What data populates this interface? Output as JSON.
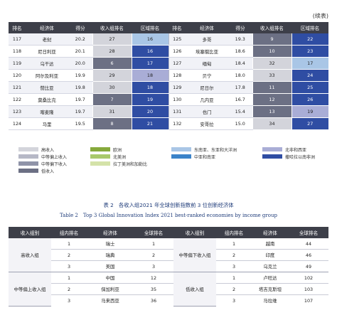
{
  "continued_label": "(续表)",
  "table1": {
    "headers": [
      "排名",
      "经济体",
      "得分",
      "收入组排名",
      "区域排名",
      "排名",
      "经济体",
      "得分",
      "收入组排名",
      "区域排名"
    ],
    "rows": [
      {
        "left": {
          "rank": "117",
          "economy": "老挝",
          "score": "20.2",
          "income_rank": "27",
          "region_rank": "16"
        },
        "right": {
          "rank": "125",
          "economy": "多哥",
          "score": "19.3",
          "income_rank": "9",
          "region_rank": "22"
        }
      },
      {
        "left": {
          "rank": "118",
          "economy": "尼日利亚",
          "score": "20.1",
          "income_rank": "28",
          "region_rank": "16"
        },
        "right": {
          "rank": "126",
          "economy": "埃塞俄比亚",
          "score": "18.6",
          "income_rank": "10",
          "region_rank": "23"
        }
      },
      {
        "left": {
          "rank": "119",
          "economy": "乌干达",
          "score": "20.0",
          "income_rank": "6",
          "region_rank": "17"
        },
        "right": {
          "rank": "127",
          "economy": "缅甸",
          "score": "18.4",
          "income_rank": "32",
          "region_rank": "17"
        }
      },
      {
        "left": {
          "rank": "120",
          "economy": "阿尔及利亚",
          "score": "19.9",
          "income_rank": "29",
          "region_rank": "18"
        },
        "right": {
          "rank": "128",
          "economy": "贝宁",
          "score": "18.0",
          "income_rank": "33",
          "region_rank": "24"
        }
      },
      {
        "left": {
          "rank": "121",
          "economy": "赞比亚",
          "score": "19.8",
          "income_rank": "30",
          "region_rank": "18"
        },
        "right": {
          "rank": "129",
          "economy": "尼日尔",
          "score": "17.8",
          "income_rank": "11",
          "region_rank": "25"
        }
      },
      {
        "left": {
          "rank": "122",
          "economy": "莫桑比克",
          "score": "19.7",
          "income_rank": "7",
          "region_rank": "19"
        },
        "right": {
          "rank": "130",
          "economy": "几内亚",
          "score": "16.7",
          "income_rank": "12",
          "region_rank": "26"
        }
      },
      {
        "left": {
          "rank": "123",
          "economy": "喀麦隆",
          "score": "19.7",
          "income_rank": "31",
          "region_rank": "20"
        },
        "right": {
          "rank": "131",
          "economy": "也门",
          "score": "15.4",
          "income_rank": "13",
          "region_rank": "19"
        }
      },
      {
        "left": {
          "rank": "124",
          "economy": "马里",
          "score": "19.5",
          "income_rank": "8",
          "region_rank": "21"
        },
        "right": {
          "rank": "132",
          "economy": "安哥拉",
          "score": "15.0",
          "income_rank": "34",
          "region_rank": "27"
        }
      }
    ]
  },
  "colors": {
    "high_income": "#d3d4db",
    "upper_middle": "#b6b8c6",
    "lower_middle": "#8f93a8",
    "low_income": "#6c7084",
    "europe": "#86a93c",
    "north_america": "#a9c96b",
    "latin_america": "#d4e2a8",
    "se_asia": "#a9c6e6",
    "central_south_asia": "#3b83c9",
    "nafrica_wasia": "#a9add6",
    "subsaharan": "#2f4da3",
    "header_bg": "#3d3f49",
    "caption": "#1f3c7a"
  },
  "legend": {
    "income": [
      "高收入",
      "中等偏上收入",
      "中等偏下收入",
      "低收入"
    ],
    "regions_a": [
      "欧洲",
      "北美洲",
      "拉丁美洲和加勒比"
    ],
    "regions_b": [
      "东南亚、东亚和大洋洲",
      "中亚和南亚"
    ],
    "regions_c": [
      "北非和西亚",
      "撒哈拉以南非洲"
    ]
  },
  "table2": {
    "caption_cn": "表 2　各收入组2021 年全球创新指数前 3 位创新经济体",
    "caption_en": "Table 2　Top 3 Global Innovation Index 2021 best-ranked economies by income group",
    "headers": [
      "收入组别",
      "组内排名",
      "经济体",
      "全球排名",
      "收入组别",
      "组内排名",
      "经济体",
      "全球排名"
    ],
    "groups_left": [
      "高收入组",
      "中等偏上收入组"
    ],
    "groups_right": [
      "中等偏下收入组",
      "低收入组"
    ],
    "rows": [
      {
        "l_rank": "1",
        "l_econ": "瑞士",
        "l_global": "1",
        "r_rank": "1",
        "r_econ": "越南",
        "r_global": "44"
      },
      {
        "l_rank": "2",
        "l_econ": "瑞典",
        "l_global": "2",
        "r_rank": "2",
        "r_econ": "印度",
        "r_global": "46"
      },
      {
        "l_rank": "3",
        "l_econ": "美国",
        "l_global": "3",
        "r_rank": "3",
        "r_econ": "乌克兰",
        "r_global": "49"
      },
      {
        "l_rank": "1",
        "l_econ": "中国",
        "l_global": "12",
        "r_rank": "1",
        "r_econ": "卢旺达",
        "r_global": "102"
      },
      {
        "l_rank": "2",
        "l_econ": "保加利亚",
        "l_global": "35",
        "r_rank": "2",
        "r_econ": "塔吉克斯坦",
        "r_global": "103"
      },
      {
        "l_rank": "3",
        "l_econ": "马来西亚",
        "l_global": "36",
        "r_rank": "3",
        "r_econ": "马拉维",
        "r_global": "107"
      }
    ]
  }
}
